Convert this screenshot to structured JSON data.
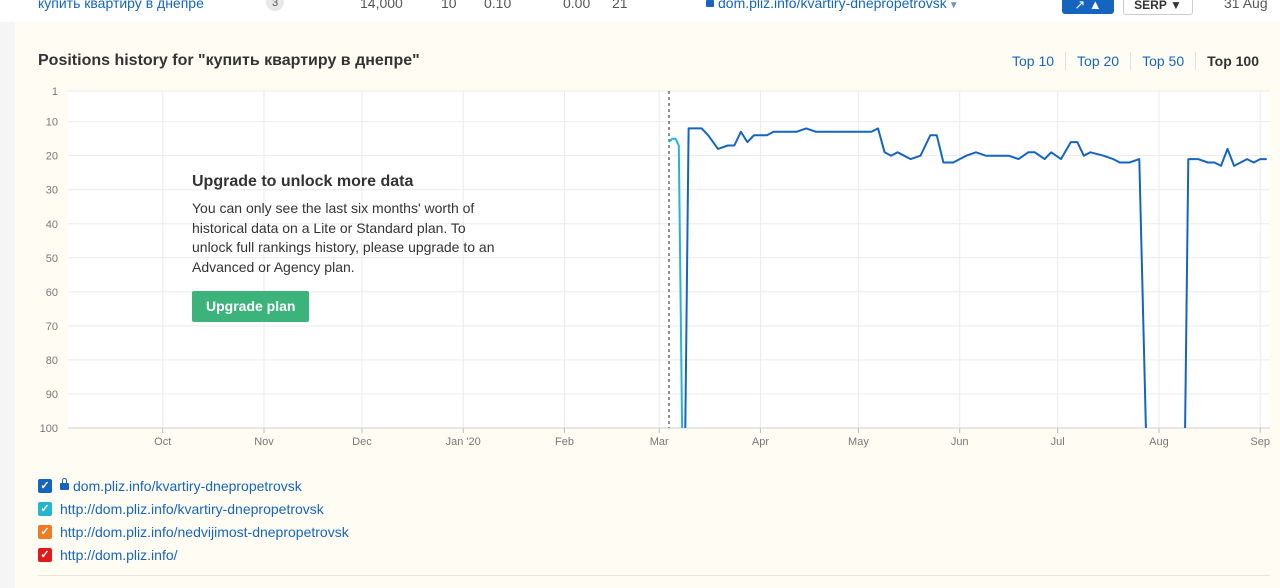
{
  "top_row": {
    "keyword": "купить квартиру в днепре",
    "badge": "3",
    "volume": "14,000",
    "kd": "10",
    "cpc": "0.10",
    "cps": "0.00",
    "position": "21",
    "url": "dom.pliz.info/kvartiry-dnepropetrovsk",
    "trend_button": "↗ ▲",
    "serp_button": "SERP ▼",
    "date": "31 Aug"
  },
  "panel": {
    "title": "Positions history for \"купить квартиру в днепре\"",
    "tabs": [
      {
        "label": "Top 10",
        "active": false
      },
      {
        "label": "Top 20",
        "active": false
      },
      {
        "label": "Top 50",
        "active": false
      },
      {
        "label": "Top 100",
        "active": true
      }
    ]
  },
  "overlay": {
    "title": "Upgrade to unlock more data",
    "body": "You can only see the last six months' worth of historical data on a Lite or Standard plan. To unlock full rankings history, please upgrade to an Advanced or Agency plan.",
    "button": "Upgrade plan"
  },
  "legend": [
    {
      "label": "dom.pliz.info/kvartiry-dnepropetrovsk",
      "color": "#1565c0",
      "locked": true
    },
    {
      "label": "http://dom.pliz.info/kvartiry-dnepropetrovsk",
      "color": "#26b5d0",
      "locked": false
    },
    {
      "label": "http://dom.pliz.info/nedvijimost-dnepropetrovsk",
      "color": "#f07b22",
      "locked": false
    },
    {
      "label": "http://dom.pliz.info/",
      "color": "#e01b1b",
      "locked": false
    }
  ],
  "chart_data": {
    "type": "line",
    "y_reversed": true,
    "ylim": [
      1,
      100
    ],
    "y_ticks": [
      1,
      10,
      20,
      30,
      40,
      50,
      60,
      70,
      80,
      90,
      100
    ],
    "x_range": [
      "2019-09-02",
      "2020-09-04"
    ],
    "x_ticks": [
      {
        "label": "Oct",
        "date": "2019-10-01"
      },
      {
        "label": "Nov",
        "date": "2019-11-01"
      },
      {
        "label": "Dec",
        "date": "2019-12-01"
      },
      {
        "label": "Jan '20",
        "date": "2020-01-01"
      },
      {
        "label": "Feb",
        "date": "2020-02-01"
      },
      {
        "label": "Mar",
        "date": "2020-03-01"
      },
      {
        "label": "Apr",
        "date": "2020-04-01"
      },
      {
        "label": "May",
        "date": "2020-05-01"
      },
      {
        "label": "Jun",
        "date": "2020-06-01"
      },
      {
        "label": "Jul",
        "date": "2020-07-01"
      },
      {
        "label": "Aug",
        "date": "2020-08-01"
      },
      {
        "label": "Sep",
        "date": "2020-09-01"
      }
    ],
    "restriction_line_date": "2020-03-04",
    "grid": true,
    "series": [
      {
        "name": "http://dom.pliz.info/kvartiry-dnepropetrovsk",
        "color": "#26b5d0",
        "points": [
          [
            "2020-03-04",
            16
          ],
          [
            "2020-03-05",
            15
          ],
          [
            "2020-03-06",
            15
          ],
          [
            "2020-03-07",
            17
          ],
          [
            "2020-03-08",
            100
          ]
        ]
      },
      {
        "name": "dom.pliz.info/kvartiry-dnepropetrovsk",
        "color": "#1565c0",
        "points": [
          [
            "2020-03-09",
            100
          ],
          [
            "2020-03-10",
            12
          ],
          [
            "2020-03-14",
            12
          ],
          [
            "2020-03-16",
            14
          ],
          [
            "2020-03-19",
            18
          ],
          [
            "2020-03-22",
            17
          ],
          [
            "2020-03-24",
            17
          ],
          [
            "2020-03-26",
            13
          ],
          [
            "2020-03-28",
            16
          ],
          [
            "2020-03-30",
            14
          ],
          [
            "2020-04-03",
            14
          ],
          [
            "2020-04-05",
            13
          ],
          [
            "2020-04-12",
            13
          ],
          [
            "2020-04-15",
            12
          ],
          [
            "2020-04-18",
            13
          ],
          [
            "2020-04-25",
            13
          ],
          [
            "2020-05-01",
            13
          ],
          [
            "2020-05-05",
            13
          ],
          [
            "2020-05-07",
            12
          ],
          [
            "2020-05-09",
            19
          ],
          [
            "2020-05-11",
            20
          ],
          [
            "2020-05-13",
            19
          ],
          [
            "2020-05-17",
            21
          ],
          [
            "2020-05-20",
            20
          ],
          [
            "2020-05-23",
            14
          ],
          [
            "2020-05-25",
            14
          ],
          [
            "2020-05-27",
            22
          ],
          [
            "2020-05-30",
            22
          ],
          [
            "2020-06-03",
            20
          ],
          [
            "2020-06-06",
            19
          ],
          [
            "2020-06-09",
            20
          ],
          [
            "2020-06-12",
            20
          ],
          [
            "2020-06-16",
            20
          ],
          [
            "2020-06-19",
            21
          ],
          [
            "2020-06-22",
            19
          ],
          [
            "2020-06-24",
            19
          ],
          [
            "2020-06-27",
            21
          ],
          [
            "2020-06-29",
            19
          ],
          [
            "2020-07-02",
            21
          ],
          [
            "2020-07-05",
            16
          ],
          [
            "2020-07-07",
            16
          ],
          [
            "2020-07-09",
            20
          ],
          [
            "2020-07-11",
            19
          ],
          [
            "2020-07-15",
            20
          ],
          [
            "2020-07-18",
            21
          ],
          [
            "2020-07-20",
            22
          ],
          [
            "2020-07-23",
            22
          ],
          [
            "2020-07-26",
            21
          ],
          [
            "2020-07-28",
            100
          ]
        ]
      },
      {
        "name": "dom.pliz.info/kvartiry-dnepropetrovsk",
        "color": "#1565c0",
        "points": [
          [
            "2020-08-09",
            100
          ],
          [
            "2020-08-10",
            21
          ],
          [
            "2020-08-13",
            21
          ],
          [
            "2020-08-16",
            22
          ],
          [
            "2020-08-18",
            22
          ],
          [
            "2020-08-20",
            23
          ],
          [
            "2020-08-22",
            18
          ],
          [
            "2020-08-24",
            23
          ],
          [
            "2020-08-26",
            22
          ],
          [
            "2020-08-28",
            21
          ],
          [
            "2020-08-30",
            22
          ],
          [
            "2020-09-01",
            21
          ],
          [
            "2020-09-03",
            21
          ]
        ]
      }
    ]
  }
}
